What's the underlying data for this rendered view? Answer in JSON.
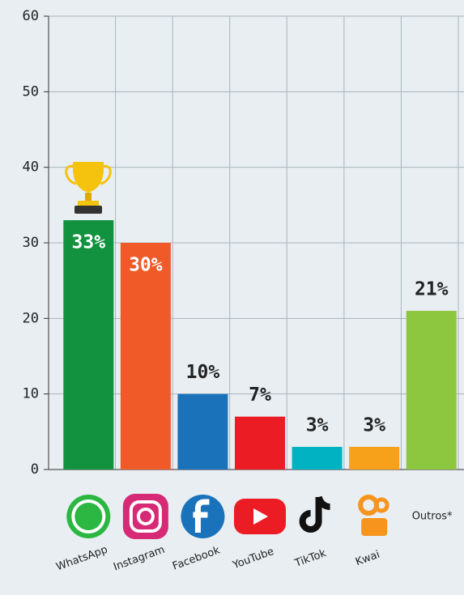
{
  "chart_data": {
    "type": "bar",
    "categories": [
      "WhatsApp",
      "Instagram",
      "Facebook",
      "YouTube",
      "TikTok",
      "Kwai",
      "Outros*"
    ],
    "values": [
      33,
      30,
      10,
      7,
      3,
      3,
      21
    ],
    "value_labels": [
      "33%",
      "30%",
      "10%",
      "7%",
      "3%",
      "3%",
      "21%"
    ],
    "colors": [
      "#12923f",
      "#f05a28",
      "#1a72bb",
      "#ec1c24",
      "#00b2c2",
      "#f7a11a",
      "#8dc63f"
    ],
    "ylim": [
      0,
      60
    ],
    "yticks": [
      0,
      10,
      20,
      30,
      40,
      50,
      60
    ],
    "grid": true
  }
}
